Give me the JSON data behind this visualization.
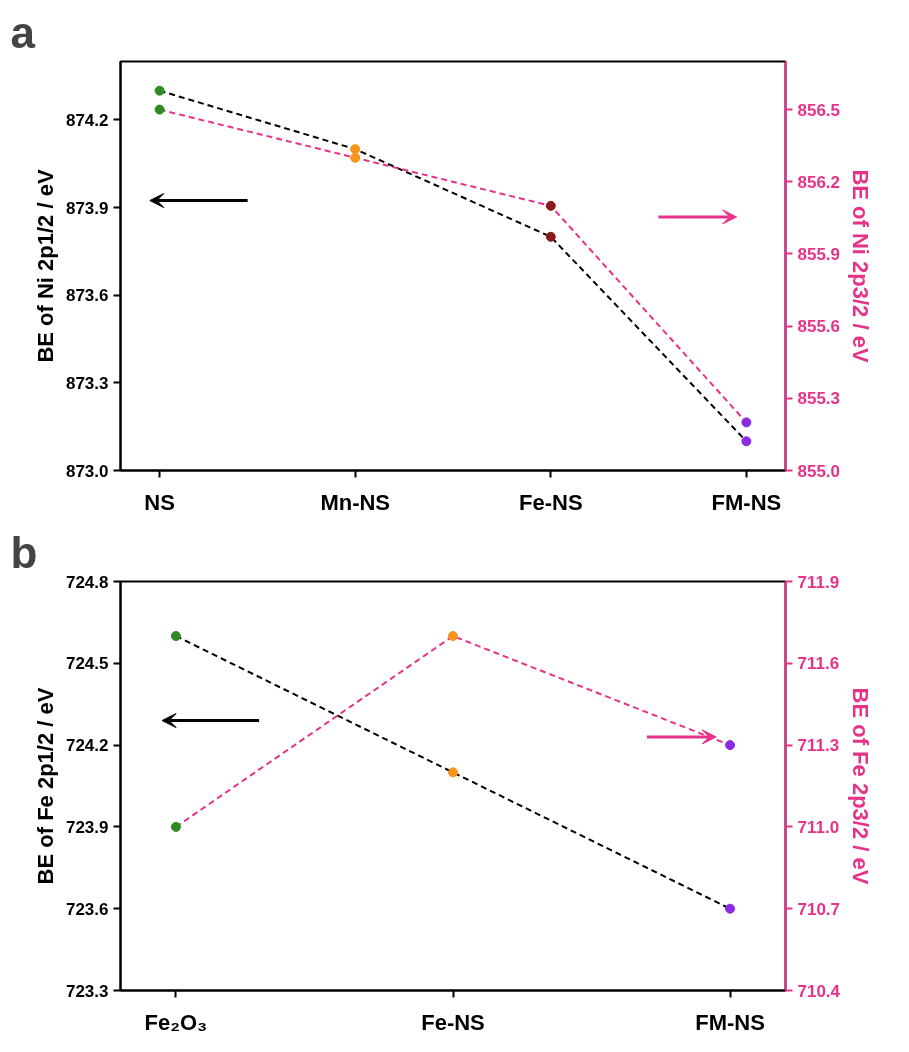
{
  "chart_data": [
    {
      "type": "line",
      "title": "a",
      "categories": [
        "NS",
        "Mn-NS",
        "Fe-NS",
        "FM-NS"
      ],
      "series": [
        {
          "color": "#000000",
          "colors": [
            "#2e8b22",
            "#f7941d",
            "#8b1a1a",
            "#8a2be2"
          ],
          "values": [
            874.3,
            874.1,
            873.8,
            873.1
          ]
        },
        {
          "color": "#e6338a",
          "colors": [
            "#2e8b22",
            "#f7941d",
            "#8b1a1a",
            "#8a2be2"
          ],
          "values": [
            856.5,
            856.3,
            856.1,
            855.2
          ],
          "axis": "y2"
        }
      ],
      "ylabel": "BE of Ni 2p1/2 / eV",
      "y2label": "BE of Ni 2p3/2 / eV",
      "ylim": [
        873.0,
        874.4
      ],
      "yticks": [
        {
          "value": 873.0,
          "label": "873.0"
        },
        873.3,
        873.6,
        873.9,
        874.2
      ],
      "y2lim": [
        855.0,
        856.7
      ],
      "y2ticks": [
        {
          "value": 855.0,
          "label": "855.0"
        },
        855.3,
        855.6,
        855.9,
        856.2,
        856.5
      ],
      "marker": "circle",
      "line_style": "dashed",
      "grid": false
    },
    {
      "type": "line",
      "title": "b",
      "categories": [
        "Fe₂O₃",
        "Fe-NS",
        "FM-NS"
      ],
      "series": [
        {
          "color": "#000000",
          "colors": [
            "#2e8b22",
            "#f7941d",
            "#8a2be2"
          ],
          "values": [
            724.6,
            724.1,
            723.6
          ]
        },
        {
          "color": "#e6338a",
          "colors": [
            "#2e8b22",
            "#f7941d",
            "#8a2be2"
          ],
          "values": [
            711.0,
            711.7,
            711.3
          ],
          "axis": "y2"
        }
      ],
      "ylabel": "BE of Fe 2p1/2 / eV",
      "y2label": "BE of Fe 2p3/2 / eV",
      "ylim": [
        723.3,
        724.8
      ],
      "yticks": [
        723.3,
        723.6,
        723.9,
        724.2,
        724.5,
        724.8
      ],
      "y2lim": [
        710.4,
        711.9
      ],
      "y2ticks": [
        710.4,
        710.7,
        {
          "value": 711.0,
          "label": "711.0"
        },
        711.3,
        711.6,
        711.9
      ],
      "marker": "circle",
      "line_style": "dashed",
      "grid": false
    }
  ]
}
